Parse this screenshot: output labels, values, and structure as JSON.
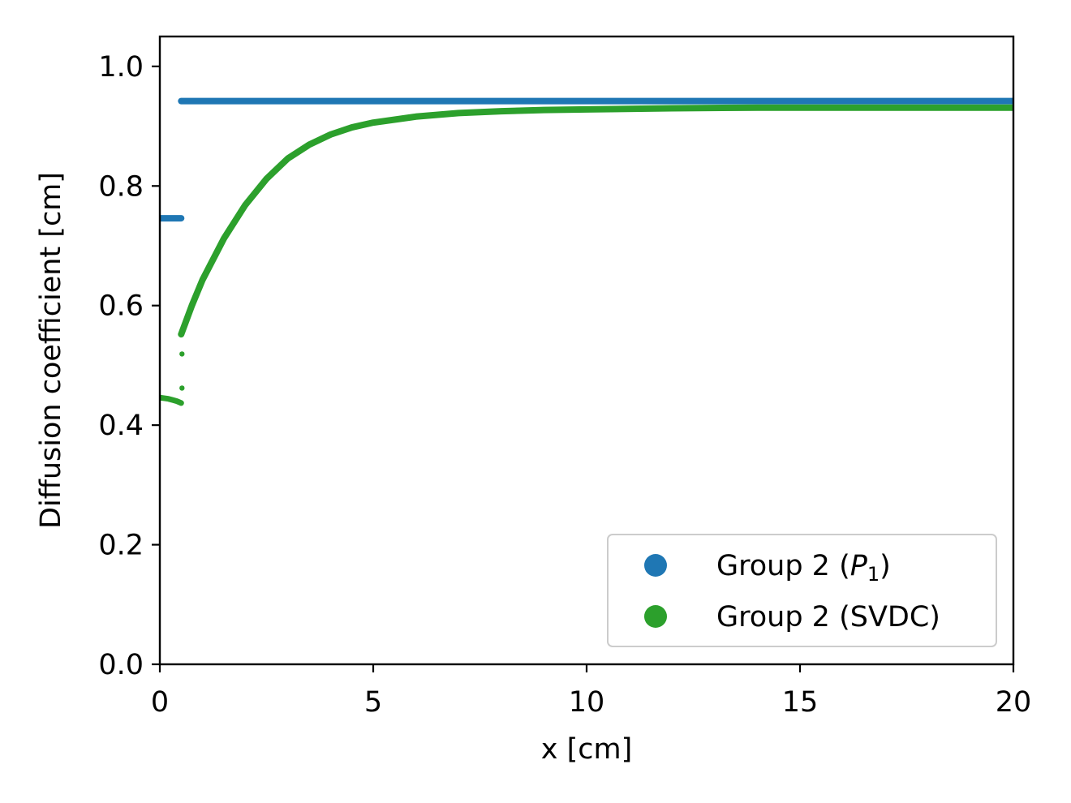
{
  "chart_data": {
    "type": "scatter",
    "xlabel": "x [cm]",
    "ylabel": "Diffusion coefficient [cm]",
    "xlim": [
      0,
      20
    ],
    "ylim": [
      0,
      1.05
    ],
    "x_ticks": [
      "0",
      "5",
      "10",
      "15",
      "20"
    ],
    "y_ticks": [
      "0.0",
      "0.2",
      "0.4",
      "0.6",
      "0.8",
      "1.0"
    ],
    "grid": false,
    "legend_position": "lower-right",
    "series": [
      {
        "name": "Group 2 (P1)",
        "legend_main": "Group 2 (",
        "legend_italic": "P",
        "legend_sub": "1",
        "legend_tail": ")",
        "color": "#1f77b4",
        "segments": [
          {
            "x_start": 0.0,
            "x_end": 0.5,
            "y": 0.746
          },
          {
            "x_start": 0.5,
            "x_end": 20.0,
            "y": 0.942
          }
        ]
      },
      {
        "name": "Group 2 (SVDC)",
        "legend_label": "Group 2 (SVDC)",
        "color": "#2ca02c",
        "points": [
          [
            0.0,
            0.446
          ],
          [
            0.1,
            0.445
          ],
          [
            0.2,
            0.444
          ],
          [
            0.3,
            0.442
          ],
          [
            0.4,
            0.44
          ],
          [
            0.5,
            0.437
          ],
          [
            0.5,
            0.462
          ],
          [
            0.5,
            0.519
          ],
          [
            0.5,
            0.552
          ],
          [
            0.75,
            0.6
          ],
          [
            1.0,
            0.643
          ],
          [
            1.5,
            0.712
          ],
          [
            2.0,
            0.768
          ],
          [
            2.5,
            0.812
          ],
          [
            3.0,
            0.846
          ],
          [
            3.5,
            0.869
          ],
          [
            4.0,
            0.886
          ],
          [
            4.5,
            0.898
          ],
          [
            5.0,
            0.906
          ],
          [
            6.0,
            0.916
          ],
          [
            7.0,
            0.922
          ],
          [
            8.0,
            0.925
          ],
          [
            9.0,
            0.927
          ],
          [
            10.0,
            0.928
          ],
          [
            12.0,
            0.93
          ],
          [
            14.0,
            0.931
          ],
          [
            16.0,
            0.931
          ],
          [
            18.0,
            0.931
          ],
          [
            20.0,
            0.931
          ]
        ]
      }
    ]
  }
}
